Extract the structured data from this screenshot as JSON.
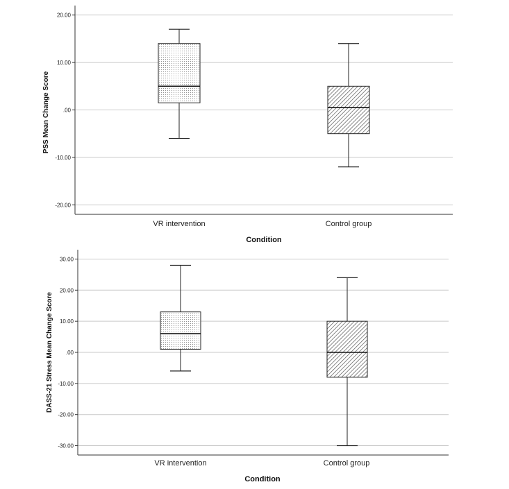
{
  "chart_data": [
    {
      "type": "boxplot",
      "title": "",
      "xlabel": "Condition",
      "ylabel": "PSS Mean Change Score",
      "ylim": [
        -22,
        22
      ],
      "yticks": [
        20,
        10,
        0,
        -10,
        -20
      ],
      "ytick_labels": [
        "20.00",
        "10.00",
        ".00",
        "-10.00",
        "-20.00"
      ],
      "categories": [
        "VR intervention",
        "Control group"
      ],
      "grid": true,
      "boxes": [
        {
          "name": "VR intervention",
          "min": -6,
          "q1": 1.5,
          "median": 5,
          "q3": 14,
          "max": 17,
          "fill": "dots"
        },
        {
          "name": "Control group",
          "min": -12,
          "q1": -5,
          "median": 0.5,
          "q3": 5,
          "max": 14,
          "fill": "hatch"
        }
      ]
    },
    {
      "type": "boxplot",
      "title": "",
      "xlabel": "Condition",
      "ylabel": "DASS-21 Stress Mean Change Score",
      "ylim": [
        -33,
        33
      ],
      "yticks": [
        30,
        20,
        10,
        0,
        -10,
        -20,
        -30
      ],
      "ytick_labels": [
        "30.00",
        "20.00",
        "10.00",
        ".00",
        "-10.00",
        "-20.00",
        "-30.00"
      ],
      "categories": [
        "VR intervention",
        "Control group"
      ],
      "grid": true,
      "boxes": [
        {
          "name": "VR intervention",
          "min": -6,
          "q1": 1,
          "median": 6,
          "q3": 13,
          "max": 28,
          "fill": "dots"
        },
        {
          "name": "Control group",
          "min": -30,
          "q1": -8,
          "median": 0,
          "q3": 10,
          "max": 24,
          "fill": "hatch"
        }
      ]
    }
  ]
}
